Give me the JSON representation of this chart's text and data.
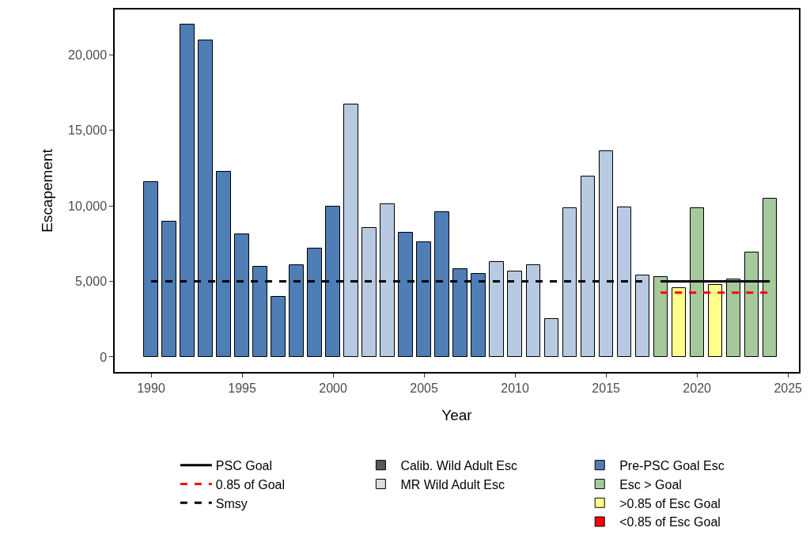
{
  "chart_data": {
    "type": "bar",
    "xlabel": "Year",
    "ylabel": "Escapement",
    "x": [
      1990,
      1991,
      1992,
      1993,
      1994,
      1995,
      1996,
      1997,
      1998,
      1999,
      2000,
      2001,
      2002,
      2003,
      2004,
      2005,
      2006,
      2007,
      2008,
      2009,
      2010,
      2011,
      2012,
      2013,
      2014,
      2015,
      2016,
      2017,
      2018,
      2019,
      2020,
      2021,
      2022,
      2023,
      2024
    ],
    "xlim": [
      1988,
      2025.6
    ],
    "xticks": [
      1990,
      1995,
      2000,
      2005,
      2010,
      2015,
      2020,
      2025
    ],
    "ylim": [
      -1000,
      23000
    ],
    "yticks": [
      {
        "value": 0,
        "label": "0"
      },
      {
        "value": 5000,
        "label": "5,000"
      },
      {
        "value": 10000,
        "label": "10,000"
      },
      {
        "value": 15000,
        "label": "15,000"
      },
      {
        "value": 20000,
        "label": "20,000"
      }
    ],
    "grid": false,
    "legend": "bottom",
    "series": [
      {
        "name": "PSC Goal",
        "type": "line",
        "color": "#000000",
        "line_style": "solid",
        "x": [
          2018,
          2024
        ],
        "values": [
          5000,
          5000
        ]
      },
      {
        "name": "0.85 of Goal",
        "type": "line",
        "color": "#ff0000",
        "line_style": "dashed",
        "x": [
          2018,
          2024
        ],
        "values": [
          4250,
          4250
        ]
      },
      {
        "name": "Smsy",
        "type": "line",
        "color": "#000000",
        "line_style": "dashed",
        "x": [
          1990,
          2017
        ],
        "values": [
          5000,
          5000
        ]
      },
      {
        "name": "Pre-PSC Goal Esc",
        "color": "#4f7db5",
        "values": [
          11600,
          8950,
          22000,
          20950,
          12250,
          8140,
          5960,
          4000,
          6090,
          7190,
          9960,
          null,
          null,
          null,
          8210,
          7610,
          9560,
          5790,
          5490,
          null,
          null,
          null,
          null,
          null,
          null,
          null,
          null,
          null,
          null,
          null,
          null,
          null,
          null,
          null,
          null
        ]
      },
      {
        "color": "#b8cae2",
        "values": [
          null,
          null,
          null,
          null,
          null,
          null,
          null,
          null,
          null,
          null,
          null,
          16720,
          8540,
          10120,
          null,
          null,
          null,
          null,
          null,
          6300,
          5680,
          6050,
          2520,
          9860,
          11930,
          13630,
          9900,
          5400,
          null,
          null,
          null,
          null,
          null,
          null,
          null
        ]
      },
      {
        "name": "Esc > Goal",
        "color": "#a5c99b",
        "values": [
          null,
          null,
          null,
          null,
          null,
          null,
          null,
          null,
          null,
          null,
          null,
          null,
          null,
          null,
          null,
          null,
          null,
          null,
          null,
          null,
          null,
          null,
          null,
          null,
          null,
          null,
          null,
          null,
          5300,
          null,
          9830,
          null,
          5120,
          6900,
          10470
        ]
      },
      {
        "name": ">0.85 of Esc Goal",
        "color": "#ffff8c",
        "values": [
          null,
          null,
          null,
          null,
          null,
          null,
          null,
          null,
          null,
          null,
          null,
          null,
          null,
          null,
          null,
          null,
          null,
          null,
          null,
          null,
          null,
          null,
          null,
          null,
          null,
          null,
          null,
          null,
          null,
          4560,
          null,
          4740,
          null,
          null,
          null
        ]
      },
      {
        "name": "<0.85 of Esc Goal",
        "color": "#ff0000",
        "values": [
          null,
          null,
          null,
          null,
          null,
          null,
          null,
          null,
          null,
          null,
          null,
          null,
          null,
          null,
          null,
          null,
          null,
          null,
          null,
          null,
          null,
          null,
          null,
          null,
          null,
          null,
          null,
          null,
          null,
          null,
          null,
          null,
          null,
          null,
          null
        ]
      },
      {
        "name": "Calib. Wild Adult Esc",
        "color": "#595959",
        "values": [
          null,
          null,
          null,
          null,
          null,
          null,
          null,
          null,
          null,
          null,
          null,
          null,
          null,
          null,
          null,
          null,
          null,
          null,
          null,
          null,
          null,
          null,
          null,
          null,
          null,
          null,
          null,
          null,
          null,
          null,
          null,
          null,
          null,
          null,
          null
        ]
      },
      {
        "name": "MR Wild Adult Esc",
        "color": "#dddddd",
        "values": [
          null,
          null,
          null,
          null,
          null,
          null,
          null,
          null,
          null,
          null,
          null,
          null,
          null,
          null,
          null,
          null,
          null,
          null,
          null,
          null,
          null,
          null,
          null,
          null,
          null,
          null,
          null,
          null,
          null,
          null,
          null,
          null,
          null,
          null,
          null
        ]
      }
    ]
  }
}
